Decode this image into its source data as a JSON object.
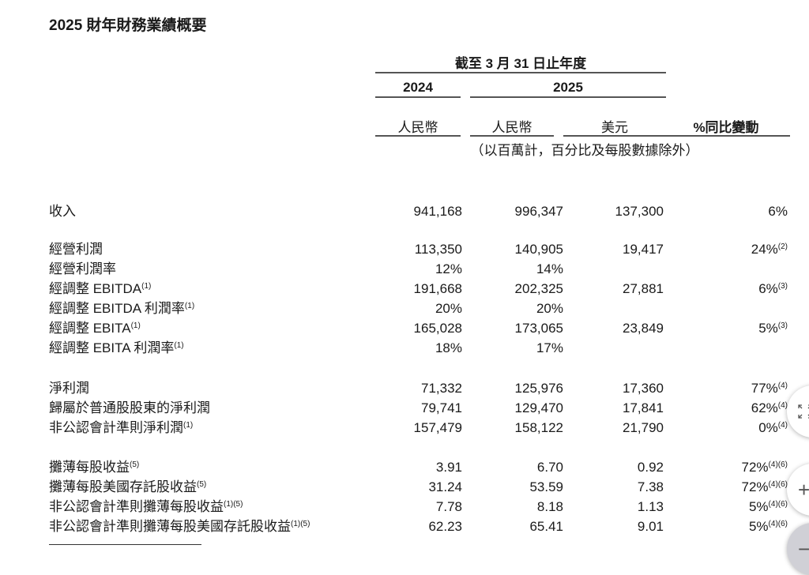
{
  "title": "2025 財年財務業績概要",
  "header": {
    "period": "截至 3 月 31 日止年度",
    "year_2024": "2024",
    "year_2025": "2025",
    "currencies": [
      "人民幣",
      "人民幣",
      "美元",
      "%同比變動"
    ],
    "unit_note": "（以百萬計，百分比及每股數據除外）"
  },
  "groups": [
    {
      "rows": [
        {
          "label": "收入",
          "sup": "",
          "values": [
            "941,168",
            "996,347",
            "137,300",
            "6%"
          ],
          "change_sup": ""
        }
      ]
    },
    {
      "rows": [
        {
          "label": "經營利潤",
          "sup": "",
          "values": [
            "113,350",
            "140,905",
            "19,417",
            "24%"
          ],
          "change_sup": "(2)"
        },
        {
          "label": "經營利潤率",
          "sup": "",
          "values": [
            "12%",
            "14%",
            "",
            ""
          ],
          "change_sup": ""
        },
        {
          "label": "經調整 EBITDA",
          "sup": "(1)",
          "values": [
            "191,668",
            "202,325",
            "27,881",
            "6%"
          ],
          "change_sup": "(3)"
        },
        {
          "label": "經調整 EBITDA 利潤率",
          "sup": "(1)",
          "values": [
            "20%",
            "20%",
            "",
            ""
          ],
          "change_sup": ""
        },
        {
          "label": "經調整 EBITA",
          "sup": "(1)",
          "values": [
            "165,028",
            "173,065",
            "23,849",
            "5%"
          ],
          "change_sup": "(3)"
        },
        {
          "label": "經調整 EBITA 利潤率",
          "sup": "(1)",
          "values": [
            "18%",
            "17%",
            "",
            ""
          ],
          "change_sup": ""
        }
      ]
    },
    {
      "rows": [
        {
          "label": "淨利潤",
          "sup": "",
          "values": [
            "71,332",
            "125,976",
            "17,360",
            "77%"
          ],
          "change_sup": "(4)"
        },
        {
          "label": "歸屬於普通股股東的淨利潤",
          "sup": "",
          "values": [
            "79,741",
            "129,470",
            "17,841",
            "62%"
          ],
          "change_sup": "(4)"
        },
        {
          "label": "非公認會計準則淨利潤",
          "sup": "(1)",
          "values": [
            "157,479",
            "158,122",
            "21,790",
            "0%"
          ],
          "change_sup": "(4)"
        }
      ]
    },
    {
      "rows": [
        {
          "label": "攤薄每股收益",
          "sup": "(5)",
          "values": [
            "3.91",
            "6.70",
            "0.92",
            "72%"
          ],
          "change_sup": "(4)(6)"
        },
        {
          "label": "攤薄每股美國存託股收益",
          "sup": "(5)",
          "values": [
            "31.24",
            "53.59",
            "7.38",
            "72%"
          ],
          "change_sup": "(4)(6)"
        },
        {
          "label": "非公認會計準則攤薄每股收益",
          "sup": "(1)(5)",
          "values": [
            "7.78",
            "8.18",
            "1.13",
            "5%"
          ],
          "change_sup": "(4)(6)"
        },
        {
          "label": "非公認會計準則攤薄每股美國存託股收益",
          "sup": "(1)(5)",
          "values": [
            "62.23",
            "65.41",
            "9.01",
            "5%"
          ],
          "change_sup": "(4)(6)"
        }
      ]
    }
  ],
  "controls": {
    "fullscreen_icon": "expand-icon",
    "zoom_in": "+",
    "zoom_out": "−"
  }
}
